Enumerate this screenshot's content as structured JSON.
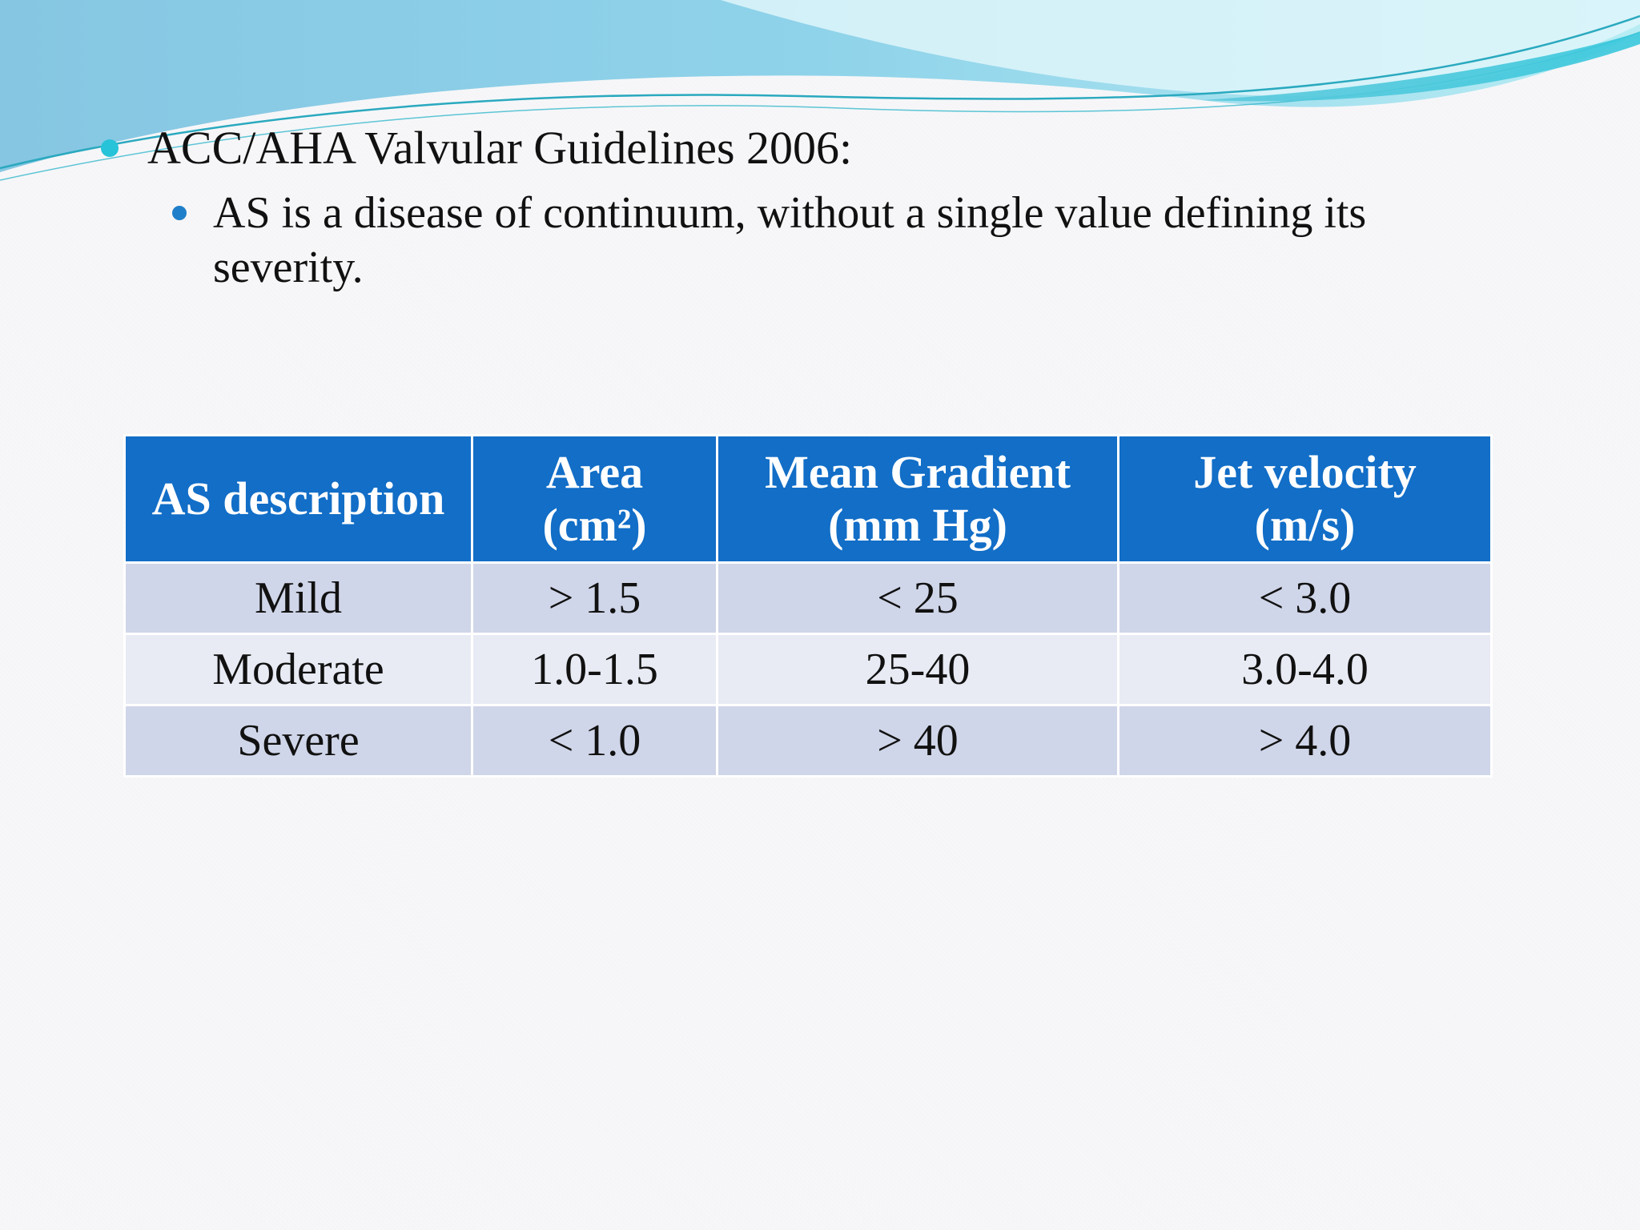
{
  "slide": {
    "bullets": [
      {
        "text": "ACC/AHA Valvular Guidelines 2006:",
        "level": 1
      },
      {
        "text": "AS is a disease of continuum, without a single value defining its severity.",
        "level": 2
      }
    ]
  },
  "table": {
    "headers": [
      {
        "line1": "AS description",
        "line2": ""
      },
      {
        "line1": "Area",
        "line2": "(cm²)"
      },
      {
        "line1": "Mean Gradient",
        "line2": "(mm Hg)"
      },
      {
        "line1": "Jet velocity",
        "line2": "(m/s)"
      }
    ],
    "rows": [
      [
        "Mild",
        "> 1.5",
        "< 25",
        "< 3.0"
      ],
      [
        "Moderate",
        "1.0-1.5",
        "25-40",
        "3.0-4.0"
      ],
      [
        "Severe",
        "< 1.0",
        "> 40",
        "> 4.0"
      ]
    ]
  },
  "colors": {
    "header_bg": "#126ec7",
    "row_odd_bg": "#d0d6e9",
    "row_even_bg": "#e8ebf4",
    "bullet_level1": "#27c3d8",
    "bullet_level2": "#1f7ec9"
  }
}
